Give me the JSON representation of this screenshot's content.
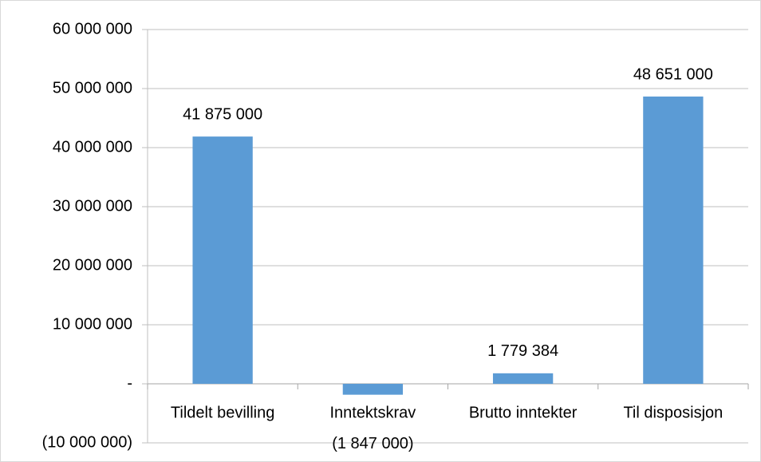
{
  "chart_data": {
    "type": "bar",
    "categories": [
      "Tildelt bevilling",
      "Inntektskrav",
      "Brutto inntekter",
      "Til disposisjon"
    ],
    "values": [
      41875000,
      -1847000,
      1779384,
      48651000
    ],
    "value_labels": [
      "41 875 000",
      "(1 847 000)",
      "1 779 384",
      "48 651 000"
    ],
    "color": "#5b9bd5",
    "ylim": [
      -10000000,
      60000000
    ],
    "yticks": [
      {
        "value": -10000000,
        "label": "(10 000 000)"
      },
      {
        "value": 0,
        "label": "-"
      },
      {
        "value": 10000000,
        "label": "10 000 000"
      },
      {
        "value": 20000000,
        "label": "20 000 000"
      },
      {
        "value": 30000000,
        "label": "30 000 000"
      },
      {
        "value": 40000000,
        "label": "40 000 000"
      },
      {
        "value": 50000000,
        "label": "50 000 000"
      },
      {
        "value": 60000000,
        "label": "60 000 000"
      }
    ],
    "grid": true
  }
}
